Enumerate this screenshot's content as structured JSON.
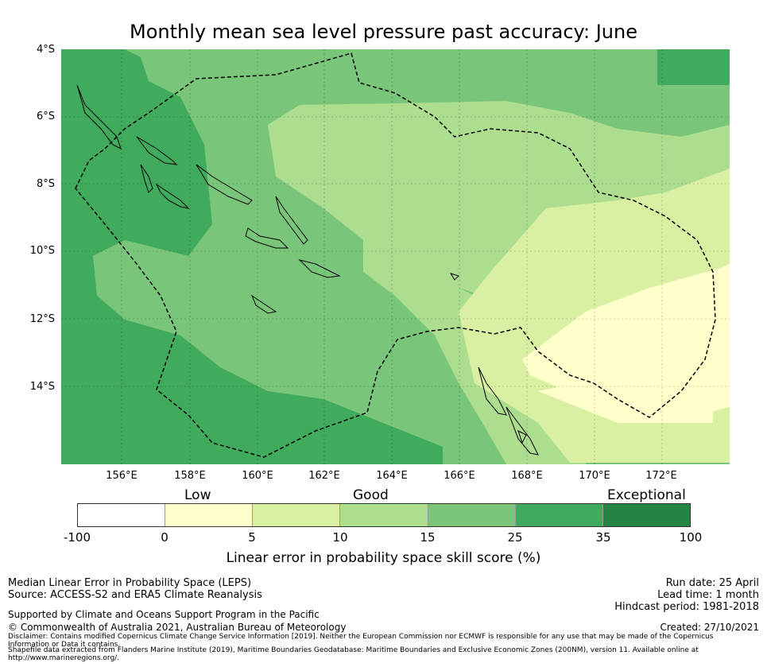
{
  "title": "Monthly mean sea level pressure past accuracy: June",
  "map": {
    "lat_labels": [
      "4°S",
      "6°S",
      "8°S",
      "10°S",
      "12°S",
      "14°S"
    ],
    "lon_labels": [
      "156°E",
      "158°E",
      "160°E",
      "162°E",
      "164°E",
      "166°E",
      "168°E",
      "170°E",
      "172°E"
    ],
    "region_boundary": "dashed",
    "colors": {
      "exceptional": "#41ab5d",
      "good_high": "#79c57a",
      "good_mid": "#addd8e",
      "good_low": "#d9f0a3",
      "low": "#ffffcc",
      "none": "#ffffff"
    }
  },
  "colorbar": {
    "category_labels": [
      "Low",
      "Good",
      "Exceptional"
    ],
    "ticks": [
      "-100",
      "0",
      "5",
      "10",
      "15",
      "25",
      "35",
      "100"
    ],
    "colors": [
      "#ffffff",
      "#ffffcc",
      "#d9f0a3",
      "#addd8e",
      "#79c57a",
      "#41ab5d",
      "#238443"
    ],
    "label": "Linear error in probability space skill score (%)"
  },
  "footer": {
    "left": [
      "Median Linear Error in Probability Space (LEPS)",
      "Source: ACCESS-S2 and ERA5 Climate Reanalysis",
      "Supported by Climate and Oceans Support Program in the Pacific",
      "© Commonwealth of Australia 2021, Australian Bureau of Meteorology"
    ],
    "right": [
      "Run date: 25 April",
      "Lead time: 1 month",
      "Hindcast period: 1981-2018",
      "Created: 27/10/2021"
    ],
    "disclaimer": "Disclaimer: Contains modified Copernicus Climate Change Service Information [2019]. Neither the European Commission nor ECMWF is responsible for any use that may be made of the Copernicus Information or Data it contains.",
    "shapefile": "Shapefile data extracted from Flanders Marine Institute (2019), Maritime Boundaries Geodatabase: Maritime Boundaries and Exclusive Economic Zones (200NM), version 11. Available online at http://www.marineregions.org/."
  }
}
